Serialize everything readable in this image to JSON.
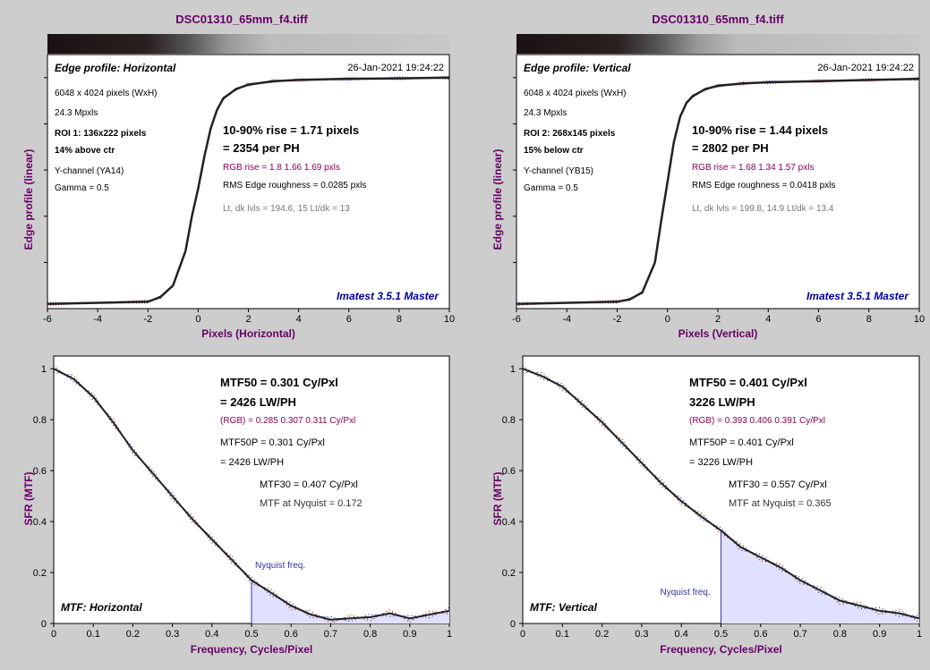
{
  "colors": {
    "background": "#cdcdcd",
    "title": "#660066",
    "axis_label": "#660066",
    "curve": "#222222",
    "red_channel": "#cc0000",
    "green_channel": "#008800",
    "blue_channel": "#0000cc",
    "rgb_text": "#880055",
    "imatest_text": "#000099",
    "nyquist_fill": "#e0e0ff",
    "nyquist_line": "#3333aa",
    "gray_text": "#777777"
  },
  "panels": [
    {
      "title": "DSC01310_65mm_f4.tiff",
      "edge": {
        "label": "Edge profile: Horizontal",
        "date": "26-Jan-2021 19:24:22",
        "info": [
          "6048 x 4024 pixels (WxH)",
          "24.3 Mpxls"
        ],
        "roi": [
          "ROI 1:  136x222 pixels",
          "14% above ctr"
        ],
        "channel": [
          "Y-channel  (YA14)",
          "Gamma = 0.5"
        ],
        "rise": [
          "10-90% rise = 1.71 pixels",
          "= 2354 per PH"
        ],
        "rgb_rise": "RGB rise = 1.8  1.66  1.69 pxls",
        "rms": "RMS Edge roughness = 0.0285 pxls",
        "levels": "Lt, dk lvls = 194.6, 15   Lt/dk = 13",
        "brand": "Imatest 3.5.1 Master",
        "xlabel": "Pixels (Horizontal)",
        "ylabel": "Edge profile (linear)"
      },
      "mtf": {
        "label": "MTF: Horizontal",
        "mtf50": [
          "MTF50 = 0.301 Cy/Pxl",
          "= 2426 LW/PH"
        ],
        "rgb": "(RGB) = 0.285  0.307  0.311 Cy/Pxl",
        "mtf50p": [
          "MTF50P = 0.301 Cy/Pxl",
          "= 2426 LW/PH"
        ],
        "mtf30": [
          "MTF30 = 0.407 Cy/Pxl",
          "MTF at Nyquist = 0.172"
        ],
        "nyquist_label": "Nyquist freq.",
        "xlabel": "Frequency, Cycles/Pixel",
        "ylabel": "SFR (MTF)"
      }
    },
    {
      "title": "DSC01310_65mm_f4.tiff",
      "edge": {
        "label": "Edge profile: Vertical",
        "date": "26-Jan-2021 19:24:22",
        "info": [
          "6048 x 4024 pixels (WxH)",
          "24.3 Mpxls"
        ],
        "roi": [
          "ROI 2:  268x145 pixels",
          "15% below ctr"
        ],
        "channel": [
          "Y-channel  (YB15)",
          "Gamma = 0.5"
        ],
        "rise": [
          "10-90% rise = 1.44 pixels",
          "= 2802 per PH"
        ],
        "rgb_rise": "RGB rise = 1.68  1.34  1.57 pxls",
        "rms": "RMS Edge roughness = 0.0418 pxls",
        "levels": "Lt, dk lvls = 199.8, 14.9   Lt/dk = 13.4",
        "brand": "Imatest 3.5.1 Master",
        "xlabel": "Pixels (Vertical)",
        "ylabel": "Edge profile (linear)"
      },
      "mtf": {
        "label": "MTF: Vertical",
        "mtf50": [
          "MTF50 = 0.401 Cy/Pxl",
          "3226 LW/PH"
        ],
        "rgb": "(RGB) = 0.393  0.406  0.391 Cy/Pxl",
        "mtf50p": [
          "MTF50P = 0.401 Cy/Pxl",
          "= 3226 LW/PH"
        ],
        "mtf30": [
          "MTF30 = 0.557 Cy/Pxl",
          "MTF at Nyquist = 0.365"
        ],
        "nyquist_label": "Nyquist freq.",
        "xlabel": "Frequency, Cycles/Pixel",
        "ylabel": "SFR (MTF)"
      }
    }
  ],
  "chart_data": [
    {
      "type": "line",
      "title": "Edge profile: Horizontal",
      "xlabel": "Pixels (Horizontal)",
      "ylabel": "Edge profile (linear)",
      "xlim": [
        -6,
        10
      ],
      "ylim": [
        0,
        1
      ],
      "x_ticks": [
        -6,
        -4,
        -2,
        0,
        2,
        4,
        6,
        8,
        10
      ],
      "series": [
        {
          "x": [
            -6,
            -2,
            -1.5,
            -1,
            -0.5,
            -0.25,
            0,
            0.25,
            0.5,
            0.75,
            1,
            1.5,
            2,
            3,
            4,
            6,
            8,
            10
          ],
          "values": [
            0.02,
            0.03,
            0.05,
            0.1,
            0.25,
            0.4,
            0.52,
            0.66,
            0.78,
            0.86,
            0.91,
            0.95,
            0.97,
            0.985,
            0.99,
            0.995,
            0.997,
            1.0
          ]
        }
      ]
    },
    {
      "type": "line",
      "title": "MTF: Horizontal",
      "xlabel": "Frequency, Cycles/Pixel",
      "ylabel": "SFR (MTF)",
      "xlim": [
        0,
        1
      ],
      "ylim": [
        0,
        1.05
      ],
      "x_ticks": [
        0,
        0.1,
        0.2,
        0.3,
        0.4,
        0.5,
        0.6,
        0.7,
        0.8,
        0.9,
        1
      ],
      "y_ticks": [
        0,
        0.2,
        0.4,
        0.6,
        0.8,
        1
      ],
      "nyquist": 0.5,
      "series": [
        {
          "x": [
            0,
            0.05,
            0.1,
            0.15,
            0.2,
            0.25,
            0.3,
            0.35,
            0.4,
            0.45,
            0.5,
            0.55,
            0.6,
            0.65,
            0.7,
            0.75,
            0.8,
            0.85,
            0.9,
            0.95,
            1.0
          ],
          "values": [
            1.0,
            0.96,
            0.89,
            0.79,
            0.68,
            0.59,
            0.5,
            0.41,
            0.33,
            0.25,
            0.17,
            0.12,
            0.07,
            0.035,
            0.015,
            0.02,
            0.025,
            0.04,
            0.02,
            0.035,
            0.05
          ]
        }
      ]
    },
    {
      "type": "line",
      "title": "Edge profile: Vertical",
      "xlabel": "Pixels (Vertical)",
      "ylabel": "Edge profile (linear)",
      "xlim": [
        -6,
        10
      ],
      "ylim": [
        0,
        1
      ],
      "x_ticks": [
        -6,
        -4,
        -2,
        0,
        2,
        4,
        6,
        8,
        10
      ],
      "series": [
        {
          "x": [
            -6,
            -2,
            -1.5,
            -1,
            -0.5,
            -0.25,
            0,
            0.25,
            0.5,
            0.75,
            1,
            1.5,
            2,
            3,
            4,
            6,
            8,
            10
          ],
          "values": [
            0.02,
            0.03,
            0.04,
            0.07,
            0.2,
            0.38,
            0.55,
            0.72,
            0.83,
            0.89,
            0.92,
            0.95,
            0.965,
            0.975,
            0.98,
            0.985,
            0.99,
            0.995
          ]
        }
      ]
    },
    {
      "type": "line",
      "title": "MTF: Vertical",
      "xlabel": "Frequency, Cycles/Pixel",
      "ylabel": "SFR (MTF)",
      "xlim": [
        0,
        1
      ],
      "ylim": [
        0,
        1.05
      ],
      "x_ticks": [
        0,
        0.1,
        0.2,
        0.3,
        0.4,
        0.5,
        0.6,
        0.7,
        0.8,
        0.9,
        1
      ],
      "y_ticks": [
        0,
        0.2,
        0.4,
        0.6,
        0.8,
        1
      ],
      "nyquist": 0.5,
      "series": [
        {
          "x": [
            0,
            0.05,
            0.1,
            0.15,
            0.2,
            0.25,
            0.3,
            0.35,
            0.4,
            0.45,
            0.5,
            0.55,
            0.6,
            0.65,
            0.7,
            0.75,
            0.8,
            0.85,
            0.9,
            0.95,
            1.0
          ],
          "values": [
            1.0,
            0.97,
            0.93,
            0.86,
            0.79,
            0.71,
            0.63,
            0.55,
            0.48,
            0.42,
            0.365,
            0.3,
            0.26,
            0.22,
            0.17,
            0.13,
            0.09,
            0.07,
            0.05,
            0.04,
            0.02
          ]
        }
      ]
    }
  ]
}
